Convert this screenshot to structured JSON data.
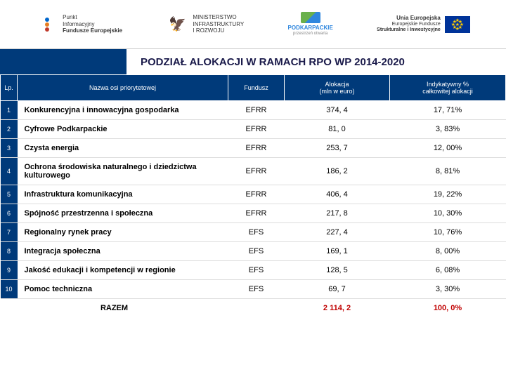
{
  "logos": {
    "punkt1": "Punkt",
    "punkt2": "Informacyjny",
    "punkt3": "Fundusze Europejskie",
    "min1": "MINISTERSTWO",
    "min2": "INFRASTRUKTURY",
    "min3": "I ROZWOJU",
    "podk1": "PODKARPACKIE",
    "podk2": "przestrzeń otwarta",
    "eu1": "Unia Europejska",
    "eu2": "Europejskie Fundusze",
    "eu3": "Strukturalne i Inwestycyjne"
  },
  "title": "PODZIAŁ ALOKACJI W RAMACH RPO WP 2014-2020",
  "headers": {
    "lp": "Lp.",
    "nazwa": "Nazwa osi priorytetowej",
    "fundusz": "Fundusz",
    "alokacja": "Alokacja\n(mln w euro)",
    "indyk": "Indykatywny %\ncałkowitej alokacji"
  },
  "rows": [
    {
      "lp": "1",
      "n": "Konkurencyjna i innowacyjna gospodarka",
      "f": "EFRR",
      "a": "374, 4",
      "p": "17, 71%"
    },
    {
      "lp": "2",
      "n": "Cyfrowe Podkarpackie",
      "f": "EFRR",
      "a": "81, 0",
      "p": "3, 83%"
    },
    {
      "lp": "3",
      "n": "Czysta energia",
      "f": "EFRR",
      "a": "253, 7",
      "p": "12, 00%"
    },
    {
      "lp": "4",
      "n": "Ochrona środowiska naturalnego i dziedzictwa kulturowego",
      "f": "EFRR",
      "a": "186, 2",
      "p": "8, 81%"
    },
    {
      "lp": "5",
      "n": "Infrastruktura komunikacyjna",
      "f": "EFRR",
      "a": "406, 4",
      "p": "19, 22%"
    },
    {
      "lp": "6",
      "n": "Spójność przestrzenna i społeczna",
      "f": "EFRR",
      "a": "217, 8",
      "p": "10, 30%"
    },
    {
      "lp": "7",
      "n": "Regionalny rynek pracy",
      "f": "EFS",
      "a": "227, 4",
      "p": "10, 76%"
    },
    {
      "lp": "8",
      "n": "Integracja społeczna",
      "f": "EFS",
      "a": "169, 1",
      "p": "8, 00%"
    },
    {
      "lp": "9",
      "n": "Jakość edukacji i kompetencji w regionie",
      "f": "EFS",
      "a": "128, 5",
      "p": "6, 08%"
    },
    {
      "lp": "10",
      "n": "Pomoc techniczna",
      "f": "EFS",
      "a": "69, 7",
      "p": "3, 30%"
    }
  ],
  "totals": {
    "label": "RAZEM",
    "a": "2 114, 2",
    "p": "100, 0%"
  }
}
